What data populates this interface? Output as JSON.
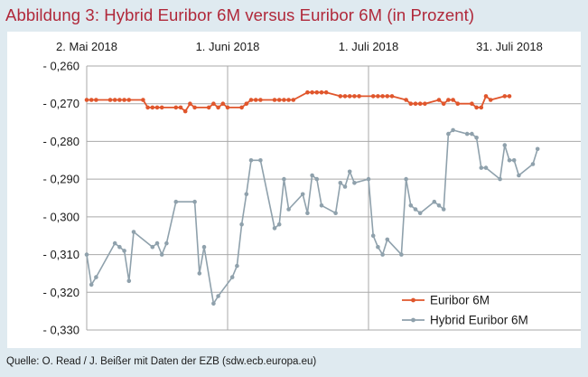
{
  "figure": {
    "title": "Abbildung 3: Hybrid Euribor 6M versus Euribor 6M (in Prozent)",
    "source": "Quelle: O. Read / J. Beißer mit Daten der EZB (sdw.ecb.europa.eu)"
  },
  "chart_data": {
    "type": "line",
    "title": "Abbildung 3: Hybrid Euribor 6M versus Euribor 6M (in Prozent)",
    "xlabel": "",
    "ylabel": "",
    "x_axis": {
      "position": "top",
      "range": [
        "2018-05-02",
        "2018-07-31"
      ],
      "ticks": [
        {
          "date": "2018-05-02",
          "label": "2. Mai 2018"
        },
        {
          "date": "2018-06-01",
          "label": "1. Juni 2018"
        },
        {
          "date": "2018-07-01",
          "label": "1. Juli 2018"
        },
        {
          "date": "2018-07-31",
          "label": "31. Juli 2018"
        }
      ],
      "vertical_gridlines": [
        "2018-06-01",
        "2018-07-01"
      ]
    },
    "y_axis": {
      "ylim": [
        -0.33,
        -0.26
      ],
      "ticks": [
        -0.26,
        -0.27,
        -0.28,
        -0.29,
        -0.3,
        -0.31,
        -0.32,
        -0.33
      ],
      "tick_labels": [
        "- 0,260",
        "- 0,270",
        "- 0,280",
        "- 0,290",
        "- 0,300",
        "- 0,310",
        "- 0,320",
        "- 0,330"
      ]
    },
    "grid": "horizontal lines at every y tick; vertical lines at 1. Juni 2018 and 1. Juli 2018",
    "legend": {
      "placement": "bottom-right",
      "entries": [
        "Euribor 6M",
        "Hybrid Euribor 6M"
      ]
    },
    "series": [
      {
        "name": "Euribor 6M",
        "color": "#e0562c",
        "points": [
          [
            "2018-05-02",
            -0.269
          ],
          [
            "2018-05-03",
            -0.269
          ],
          [
            "2018-05-04",
            -0.269
          ],
          [
            "2018-05-07",
            -0.269
          ],
          [
            "2018-05-08",
            -0.269
          ],
          [
            "2018-05-09",
            -0.269
          ],
          [
            "2018-05-10",
            -0.269
          ],
          [
            "2018-05-11",
            -0.269
          ],
          [
            "2018-05-14",
            -0.269
          ],
          [
            "2018-05-15",
            -0.271
          ],
          [
            "2018-05-16",
            -0.271
          ],
          [
            "2018-05-17",
            -0.271
          ],
          [
            "2018-05-18",
            -0.271
          ],
          [
            "2018-05-21",
            -0.271
          ],
          [
            "2018-05-22",
            -0.271
          ],
          [
            "2018-05-23",
            -0.272
          ],
          [
            "2018-05-24",
            -0.27
          ],
          [
            "2018-05-25",
            -0.271
          ],
          [
            "2018-05-28",
            -0.271
          ],
          [
            "2018-05-29",
            -0.27
          ],
          [
            "2018-05-30",
            -0.271
          ],
          [
            "2018-05-31",
            -0.27
          ],
          [
            "2018-06-01",
            -0.271
          ],
          [
            "2018-06-04",
            -0.271
          ],
          [
            "2018-06-05",
            -0.27
          ],
          [
            "2018-06-06",
            -0.269
          ],
          [
            "2018-06-07",
            -0.269
          ],
          [
            "2018-06-08",
            -0.269
          ],
          [
            "2018-06-11",
            -0.269
          ],
          [
            "2018-06-12",
            -0.269
          ],
          [
            "2018-06-13",
            -0.269
          ],
          [
            "2018-06-14",
            -0.269
          ],
          [
            "2018-06-15",
            -0.269
          ],
          [
            "2018-06-18",
            -0.267
          ],
          [
            "2018-06-19",
            -0.267
          ],
          [
            "2018-06-20",
            -0.267
          ],
          [
            "2018-06-21",
            -0.267
          ],
          [
            "2018-06-22",
            -0.267
          ],
          [
            "2018-06-25",
            -0.268
          ],
          [
            "2018-06-26",
            -0.268
          ],
          [
            "2018-06-27",
            -0.268
          ],
          [
            "2018-06-28",
            -0.268
          ],
          [
            "2018-06-29",
            -0.268
          ],
          [
            "2018-07-02",
            -0.268
          ],
          [
            "2018-07-03",
            -0.268
          ],
          [
            "2018-07-04",
            -0.268
          ],
          [
            "2018-07-05",
            -0.268
          ],
          [
            "2018-07-06",
            -0.268
          ],
          [
            "2018-07-09",
            -0.269
          ],
          [
            "2018-07-10",
            -0.27
          ],
          [
            "2018-07-11",
            -0.27
          ],
          [
            "2018-07-12",
            -0.27
          ],
          [
            "2018-07-13",
            -0.27
          ],
          [
            "2018-07-16",
            -0.269
          ],
          [
            "2018-07-17",
            -0.27
          ],
          [
            "2018-07-18",
            -0.269
          ],
          [
            "2018-07-19",
            -0.269
          ],
          [
            "2018-07-20",
            -0.27
          ],
          [
            "2018-07-23",
            -0.27
          ],
          [
            "2018-07-24",
            -0.271
          ],
          [
            "2018-07-25",
            -0.271
          ],
          [
            "2018-07-26",
            -0.268
          ],
          [
            "2018-07-27",
            -0.269
          ],
          [
            "2018-07-30",
            -0.268
          ],
          [
            "2018-07-31",
            -0.268
          ]
        ]
      },
      {
        "name": "Hybrid Euribor 6M",
        "color": "#8fa1ac",
        "points": [
          [
            "2018-05-02",
            -0.31
          ],
          [
            "2018-05-03",
            -0.318
          ],
          [
            "2018-05-04",
            -0.316
          ],
          [
            "2018-05-08",
            -0.307
          ],
          [
            "2018-05-09",
            -0.308
          ],
          [
            "2018-05-10",
            -0.309
          ],
          [
            "2018-05-11",
            -0.317
          ],
          [
            "2018-05-12",
            -0.304
          ],
          [
            "2018-05-16",
            -0.308
          ],
          [
            "2018-05-17",
            -0.307
          ],
          [
            "2018-05-18",
            -0.31
          ],
          [
            "2018-05-19",
            -0.307
          ],
          [
            "2018-05-21",
            -0.296
          ],
          [
            "2018-05-25",
            -0.296
          ],
          [
            "2018-05-26",
            -0.315
          ],
          [
            "2018-05-27",
            -0.308
          ],
          [
            "2018-05-29",
            -0.323
          ],
          [
            "2018-05-30",
            -0.321
          ],
          [
            "2018-06-02",
            -0.316
          ],
          [
            "2018-06-03",
            -0.313
          ],
          [
            "2018-06-04",
            -0.302
          ],
          [
            "2018-06-05",
            -0.294
          ],
          [
            "2018-06-06",
            -0.285
          ],
          [
            "2018-06-08",
            -0.285
          ],
          [
            "2018-06-11",
            -0.303
          ],
          [
            "2018-06-12",
            -0.302
          ],
          [
            "2018-06-13",
            -0.29
          ],
          [
            "2018-06-14",
            -0.298
          ],
          [
            "2018-06-17",
            -0.294
          ],
          [
            "2018-06-18",
            -0.299
          ],
          [
            "2018-06-19",
            -0.289
          ],
          [
            "2018-06-20",
            -0.29
          ],
          [
            "2018-06-21",
            -0.297
          ],
          [
            "2018-06-24",
            -0.299
          ],
          [
            "2018-06-25",
            -0.291
          ],
          [
            "2018-06-26",
            -0.292
          ],
          [
            "2018-06-27",
            -0.288
          ],
          [
            "2018-06-28",
            -0.291
          ],
          [
            "2018-07-01",
            -0.29
          ],
          [
            "2018-07-02",
            -0.305
          ],
          [
            "2018-07-03",
            -0.308
          ],
          [
            "2018-07-04",
            -0.31
          ],
          [
            "2018-07-05",
            -0.306
          ],
          [
            "2018-07-08",
            -0.31
          ],
          [
            "2018-07-09",
            -0.29
          ],
          [
            "2018-07-10",
            -0.297
          ],
          [
            "2018-07-11",
            -0.298
          ],
          [
            "2018-07-12",
            -0.299
          ],
          [
            "2018-07-15",
            -0.296
          ],
          [
            "2018-07-16",
            -0.297
          ],
          [
            "2018-07-17",
            -0.298
          ],
          [
            "2018-07-18",
            -0.278
          ],
          [
            "2018-07-19",
            -0.277
          ],
          [
            "2018-07-22",
            -0.278
          ],
          [
            "2018-07-23",
            -0.278
          ],
          [
            "2018-07-24",
            -0.279
          ],
          [
            "2018-07-25",
            -0.287
          ],
          [
            "2018-07-26",
            -0.287
          ],
          [
            "2018-07-29",
            -0.29
          ],
          [
            "2018-07-30",
            -0.281
          ],
          [
            "2018-07-31",
            -0.285
          ],
          [
            "2018-08-01",
            -0.285
          ],
          [
            "2018-08-02",
            -0.289
          ],
          [
            "2018-08-05",
            -0.286
          ],
          [
            "2018-08-06",
            -0.282
          ]
        ]
      }
    ]
  }
}
